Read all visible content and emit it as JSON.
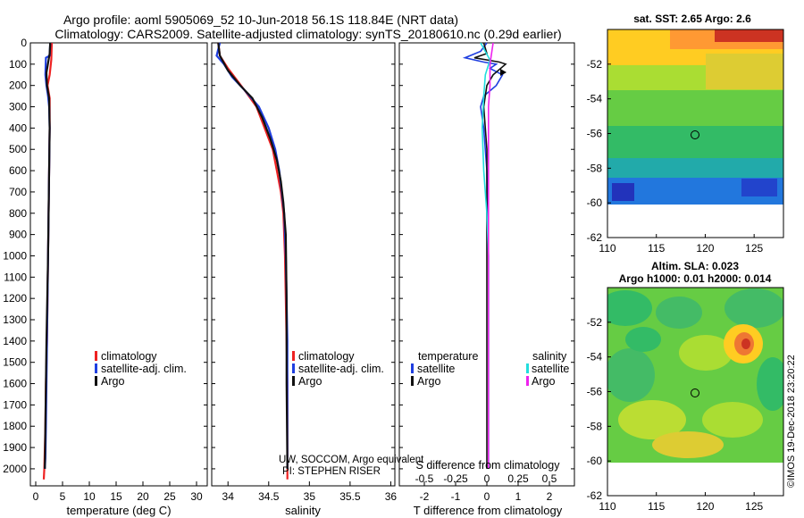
{
  "title_line1": "Argo profile: aoml 5905069_52 10-Jun-2018 56.1S 118.84E (NRT data)",
  "title_line2": "Climatology: CARS2009. Satellite-adjusted climatology: synTS_20180610.nc (0.29d earlier)",
  "watermark": "©IMOS 19-Dec-2018 23:20:22",
  "credit_line1": "UW, SOCCOM, Argo equivalent",
  "credit_line2": "PI: STEPHEN RISER",
  "colors": {
    "climatology": "#ee2222",
    "satellite": "#1f3fe0",
    "argo": "#111111",
    "s_satellite": "#22dddd",
    "s_argo": "#ee22ee"
  },
  "chart_data": [
    {
      "type": "line",
      "name": "temperature",
      "xlabel": "temperature (deg C)",
      "ylabel": "",
      "xlim": [
        -1,
        32
      ],
      "ylim": [
        2080,
        0
      ],
      "xticks": [
        0,
        5,
        10,
        15,
        20,
        25,
        30
      ],
      "yticks": [
        0,
        100,
        200,
        300,
        400,
        500,
        600,
        700,
        800,
        900,
        1000,
        1100,
        1200,
        1300,
        1400,
        1500,
        1600,
        1700,
        1800,
        1900,
        2000
      ],
      "legend": [
        "climatology",
        "satellite-adj. clim.",
        "Argo"
      ],
      "series": [
        {
          "name": "climatology",
          "color_key": "climatology",
          "x": [
            3.0,
            2.9,
            2.6,
            2.2,
            2.6,
            2.6,
            2.5,
            2.4,
            2.3,
            2.2,
            2.1,
            1.9,
            1.8,
            1.7,
            1.6,
            1.5
          ],
          "y": [
            0,
            80,
            150,
            200,
            260,
            400,
            600,
            800,
            1000,
            1200,
            1400,
            1600,
            1800,
            1900,
            2000,
            2050
          ]
        },
        {
          "name": "satellite-adj. clim.",
          "color_key": "satellite",
          "x": [
            2.7,
            2.6,
            1.9,
            1.8,
            2.0,
            2.3,
            2.5,
            2.6,
            2.5,
            2.4,
            2.3,
            2.2,
            2.1,
            2.0,
            1.9,
            1.8,
            1.7
          ],
          "y": [
            0,
            60,
            70,
            150,
            200,
            250,
            300,
            400,
            600,
            800,
            1000,
            1200,
            1400,
            1600,
            1800,
            1950,
            2000
          ]
        },
        {
          "name": "Argo",
          "color_key": "argo",
          "x": [
            2.7,
            2.6,
            2.0,
            2.1,
            2.5,
            2.6,
            2.5,
            2.3,
            2.0,
            1.8,
            1.7
          ],
          "y": [
            0,
            50,
            140,
            200,
            260,
            400,
            600,
            1000,
            1400,
            1800,
            2000
          ]
        }
      ]
    },
    {
      "type": "line",
      "name": "salinity",
      "xlabel": "salinity",
      "ylabel": "",
      "xlim": [
        33.8,
        36.05
      ],
      "ylim": [
        2080,
        0
      ],
      "xticks": [
        34,
        34.5,
        35,
        35.5,
        36
      ],
      "xtick_labels": [
        "34",
        "34.5",
        "35",
        "35.5",
        "36"
      ],
      "legend": [
        "climatology",
        "satellite-adj. clim.",
        "Argo"
      ],
      "series": [
        {
          "name": "climatology",
          "color_key": "climatology",
          "x": [
            33.88,
            33.9,
            34.0,
            34.1,
            34.2,
            34.35,
            34.45,
            34.55,
            34.6,
            34.65,
            34.68,
            34.7,
            34.71,
            34.72,
            34.73,
            34.73,
            34.73
          ],
          "y": [
            0,
            60,
            120,
            170,
            220,
            300,
            400,
            500,
            600,
            700,
            800,
            1000,
            1200,
            1400,
            1600,
            1800,
            2050
          ]
        },
        {
          "name": "satellite-adj. clim.",
          "color_key": "satellite",
          "x": [
            33.9,
            33.86,
            33.95,
            34.05,
            34.2,
            34.38,
            34.5,
            34.58,
            34.63,
            34.66,
            34.69,
            34.71,
            34.72,
            34.73,
            34.73,
            34.73
          ],
          "y": [
            0,
            60,
            100,
            160,
            220,
            300,
            400,
            500,
            600,
            700,
            800,
            1000,
            1200,
            1400,
            1600,
            2000
          ]
        },
        {
          "name": "Argo",
          "color_key": "argo",
          "x": [
            33.88,
            33.9,
            34.0,
            34.15,
            34.3,
            34.42,
            34.52,
            34.6,
            34.65,
            34.68,
            34.71,
            34.72,
            34.72,
            34.73
          ],
          "y": [
            0,
            60,
            130,
            200,
            260,
            350,
            450,
            550,
            650,
            750,
            900,
            1200,
            1600,
            2000
          ]
        }
      ]
    },
    {
      "type": "line",
      "name": "difference_from_climatology",
      "xlabel": "T difference from climatology",
      "xlabel_top": "S difference from climatology",
      "xlim": [
        -2.8,
        2.8
      ],
      "ylim": [
        2080,
        0
      ],
      "xticks": [
        -2,
        -1,
        0,
        1,
        2
      ],
      "xtick_labels": [
        "-2",
        "-1",
        "0",
        "1",
        "2"
      ],
      "s_ticks": [
        -0.5,
        -0.25,
        0,
        0.25,
        0.5
      ],
      "s_tick_labels": [
        "-0.5",
        "-0.25",
        "0",
        "0.25",
        "0.5"
      ],
      "legend_temperature_title": "temperature",
      "legend_salinity_title": "salinity",
      "legend_labels": {
        "satellite": "satellite",
        "argo": "Argo"
      },
      "series": [
        {
          "name": "temperature satellite",
          "color_key": "satellite",
          "x": [
            0.0,
            -0.2,
            -0.7,
            -0.1,
            0.3,
            0.1,
            0.5,
            0.3,
            -0.1,
            -0.2,
            -0.1,
            0.0,
            0.05,
            0.05,
            0.05,
            0.05
          ],
          "y": [
            0,
            40,
            70,
            90,
            100,
            120,
            150,
            200,
            250,
            300,
            400,
            600,
            1000,
            1400,
            1800,
            2000
          ]
        },
        {
          "name": "temperature Argo",
          "color_key": "argo",
          "x": [
            -0.1,
            0.0,
            -0.4,
            0.4,
            0.6,
            0.2,
            0.0,
            -0.1,
            0.0,
            0.0,
            0.0,
            0.0
          ],
          "y": [
            0,
            50,
            70,
            90,
            100,
            150,
            200,
            300,
            500,
            1000,
            1500,
            2000
          ]
        },
        {
          "name": "salinity satellite",
          "color_key": "s_satellite",
          "x": [
            -0.2,
            0.1,
            -0.05,
            -0.1,
            -0.15,
            -0.1,
            0.0,
            0.05,
            0.05,
            0.05,
            0.05
          ],
          "y": [
            0,
            80,
            150,
            250,
            400,
            600,
            800,
            1000,
            1400,
            1800,
            2000
          ]
        },
        {
          "name": "salinity Argo",
          "color_key": "s_argo",
          "x": [
            0.2,
            0.1,
            0.1,
            0.05,
            0.05,
            0.05,
            0.05,
            0.05,
            0.05
          ],
          "y": [
            0,
            100,
            200,
            300,
            500,
            800,
            1200,
            1600,
            2000
          ]
        }
      ]
    },
    {
      "type": "heatmap",
      "name": "sst_map",
      "title": "sat. SST: 2.65 Argo: 2.6",
      "xlim": [
        110,
        128
      ],
      "ylim": [
        -62,
        -50
      ],
      "xticks": [
        110,
        115,
        120,
        125
      ],
      "yticks": [
        -52,
        -54,
        -56,
        -58,
        -60,
        -62
      ],
      "argo_position": {
        "lon": 118.84,
        "lat": -56.1
      }
    },
    {
      "type": "heatmap",
      "name": "sla_map",
      "title": "Altim. SLA: 0.023",
      "subtitle": "Argo h1000: 0.01 h2000: 0.014",
      "xlim": [
        110,
        128
      ],
      "ylim": [
        -62,
        -50
      ],
      "xticks": [
        110,
        115,
        120,
        125
      ],
      "yticks": [
        -52,
        -54,
        -56,
        -58,
        -60,
        -62
      ],
      "argo_position": {
        "lon": 118.84,
        "lat": -56.1
      }
    }
  ]
}
